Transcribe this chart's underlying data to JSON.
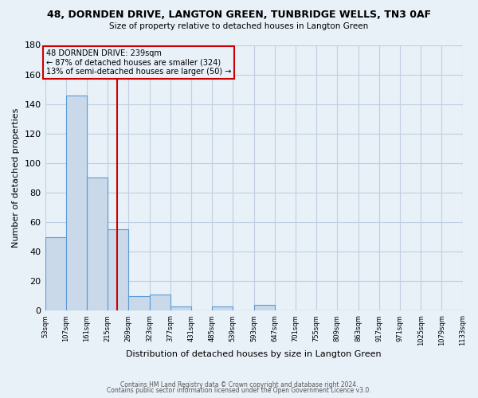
{
  "title": "48, DORNDEN DRIVE, LANGTON GREEN, TUNBRIDGE WELLS, TN3 0AF",
  "subtitle": "Size of property relative to detached houses in Langton Green",
  "xlabel": "Distribution of detached houses by size in Langton Green",
  "ylabel": "Number of detached properties",
  "bin_edges": [
    53,
    107,
    161,
    215,
    269,
    323,
    377,
    431,
    485,
    539,
    593,
    647,
    701,
    755,
    809,
    863,
    917,
    971,
    1025,
    1079,
    1133
  ],
  "bar_heights": [
    50,
    146,
    90,
    55,
    10,
    11,
    3,
    0,
    3,
    0,
    4,
    0,
    0,
    0,
    0,
    0,
    0,
    0,
    0,
    0
  ],
  "bar_color": "#c9d9ea",
  "bar_edge_color": "#5b9bd5",
  "ylim": [
    0,
    180
  ],
  "yticks": [
    0,
    20,
    40,
    60,
    80,
    100,
    120,
    140,
    160,
    180
  ],
  "xtick_labels": [
    "53sqm",
    "107sqm",
    "161sqm",
    "215sqm",
    "269sqm",
    "323sqm",
    "377sqm",
    "431sqm",
    "485sqm",
    "539sqm",
    "593sqm",
    "647sqm",
    "701sqm",
    "755sqm",
    "809sqm",
    "863sqm",
    "917sqm",
    "971sqm",
    "1025sqm",
    "1079sqm",
    "1133sqm"
  ],
  "vline_x": 239,
  "vline_color": "#cc0000",
  "annotation_line1": "48 DORNDEN DRIVE: 239sqm",
  "annotation_line2": "← 87% of detached houses are smaller (324)",
  "annotation_line3": "13% of semi-detached houses are larger (50) →",
  "annotation_box_color": "#cc0000",
  "grid_color": "#c0cfe0",
  "bg_color": "#e8f0f8",
  "footer_line1": "Contains HM Land Registry data © Crown copyright and database right 2024.",
  "footer_line2": "Contains public sector information licensed under the Open Government Licence v3.0."
}
